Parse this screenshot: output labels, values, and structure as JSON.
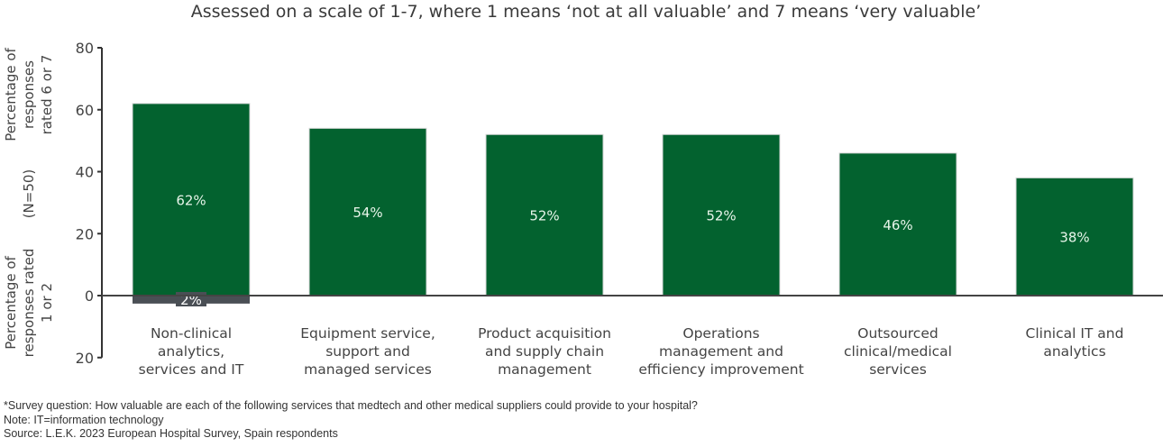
{
  "chart_data": {
    "type": "bar",
    "title": "Assessed on a scale of 1-7, where 1 means ‘not at all valuable’ and 7 means ‘very valuable’",
    "ylabel_top": [
      "Percentage of",
      "responses",
      "rated 6 or 7"
    ],
    "ylabel_mid": "(N=50)",
    "ylabel_bottom": [
      "Percentage of",
      "responses rated",
      "1 or 2"
    ],
    "ylim": [
      -20,
      80
    ],
    "yticks": [
      80,
      60,
      40,
      20,
      0,
      -20
    ],
    "ytick_labels": [
      "80",
      "60",
      "40",
      "20",
      "0",
      "20"
    ],
    "categories": [
      [
        "Non-clinical",
        "analytics,",
        "services and IT"
      ],
      [
        "Equipment service,",
        "support and",
        "managed services"
      ],
      [
        "Product acquisition",
        "and supply chain",
        "management"
      ],
      [
        "Operations",
        "management and",
        "efficiency improvement"
      ],
      [
        "Outsourced",
        "clinical/medical",
        "services"
      ],
      [
        "Clinical IT and",
        "analytics"
      ]
    ],
    "series": [
      {
        "name": "rated 6 or 7",
        "values": [
          62,
          54,
          52,
          52,
          46,
          38
        ],
        "labels": [
          "62%",
          "54%",
          "52%",
          "52%",
          "46%",
          "38%"
        ],
        "color": "#03622f"
      },
      {
        "name": "rated 1 or 2",
        "values": [
          2,
          null,
          null,
          null,
          null,
          null
        ],
        "labels": [
          "2%",
          null,
          null,
          null,
          null,
          null
        ],
        "color": "#4a4f55"
      }
    ],
    "grid": false
  },
  "notes": {
    "survey": "*Survey question: How valuable are each of the following services that medtech and other medical suppliers could provide to your hospital?",
    "note": "Note: IT=information technology",
    "source": "Source: L.E.K. 2023 European Hospital Survey, Spain respondents"
  }
}
